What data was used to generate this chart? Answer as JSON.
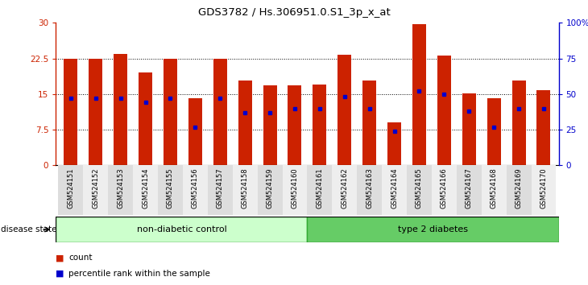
{
  "title": "GDS3782 / Hs.306951.0.S1_3p_x_at",
  "samples": [
    "GSM524151",
    "GSM524152",
    "GSM524153",
    "GSM524154",
    "GSM524155",
    "GSM524156",
    "GSM524157",
    "GSM524158",
    "GSM524159",
    "GSM524160",
    "GSM524161",
    "GSM524162",
    "GSM524163",
    "GSM524164",
    "GSM524165",
    "GSM524166",
    "GSM524167",
    "GSM524168",
    "GSM524169",
    "GSM524170"
  ],
  "counts": [
    22.5,
    22.4,
    23.5,
    19.5,
    22.5,
    14.2,
    22.5,
    17.8,
    16.8,
    16.8,
    17.0,
    23.2,
    17.8,
    9.0,
    29.7,
    23.1,
    15.1,
    14.2,
    17.8,
    15.8
  ],
  "percentile_ranks": [
    47,
    47,
    47,
    44,
    47,
    27,
    47,
    37,
    37,
    40,
    40,
    48,
    40,
    24,
    52,
    50,
    38,
    27,
    40,
    40
  ],
  "group_labels": [
    "non-diabetic control",
    "type 2 diabetes"
  ],
  "group_split": 10,
  "group_colors": [
    "#ccffcc",
    "#66cc66"
  ],
  "group_edge_color": "#33aa33",
  "bar_color": "#cc2200",
  "marker_color": "#0000cc",
  "ylim_left": [
    0,
    30
  ],
  "ylim_right": [
    0,
    100
  ],
  "yticks_left": [
    0,
    7.5,
    15,
    22.5,
    30
  ],
  "yticks_right": [
    0,
    25,
    50,
    75,
    100
  ],
  "yticklabels_left": [
    "0",
    "7.5",
    "15",
    "22.5",
    "30"
  ],
  "yticklabels_right": [
    "0",
    "25",
    "50",
    "75",
    "100%"
  ],
  "grid_values": [
    7.5,
    15,
    22.5
  ],
  "bg_color": "#ffffff",
  "legend_count_label": "count",
  "legend_percentile_label": "percentile rank within the sample",
  "disease_state_label": "disease state",
  "tick_bg_even": "#dddddd",
  "tick_bg_odd": "#eeeeee"
}
